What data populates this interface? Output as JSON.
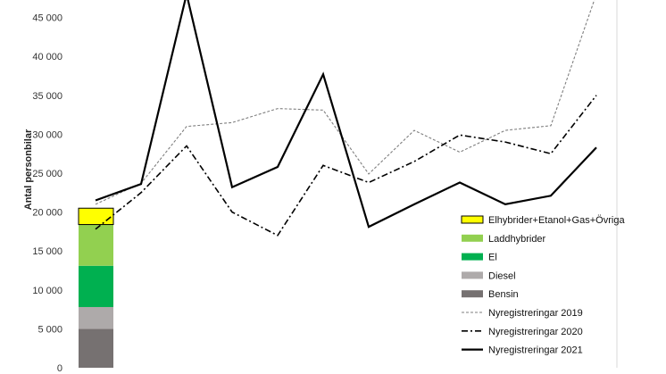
{
  "chart_data": {
    "type": "line",
    "ylabel": "Antal personbilar",
    "ylim": [
      0,
      48000
    ],
    "yticks": [
      0,
      5000,
      10000,
      15000,
      20000,
      25000,
      30000,
      35000,
      40000,
      45000
    ],
    "ytick_labels": [
      "0",
      "5 000",
      "10 000",
      "15 000",
      "20 000",
      "25 000",
      "30 000",
      "35 000",
      "40 000",
      "45 000"
    ],
    "grid": false,
    "legend_position": "right",
    "stacked_bar": {
      "segments": [
        {
          "name": "Bensin",
          "value": 5000,
          "color": "#767171"
        },
        {
          "name": "Diesel",
          "value": 2800,
          "color": "#AEAAAA"
        },
        {
          "name": "El",
          "value": 5300,
          "color": "#00B050"
        },
        {
          "name": "Laddhybrider",
          "value": 5300,
          "color": "#92D050"
        },
        {
          "name": "Elhybrider+Etanol+Gas+Övriga",
          "value": 2100,
          "color": "#FFFF00"
        }
      ]
    },
    "series": [
      {
        "name": "Nyregistreringar 2019",
        "style": "dashed",
        "color": "#7F7F7F",
        "values": [
          21000,
          23700,
          31000,
          31500,
          33300,
          33100,
          24900,
          30500,
          27700,
          30500,
          31100,
          48000
        ]
      },
      {
        "name": "Nyregistreringar 2020",
        "style": "dashdot",
        "color": "#000000",
        "values": [
          17800,
          22500,
          28500,
          20000,
          17000,
          26000,
          23800,
          26500,
          29900,
          29000,
          27500,
          35000
        ]
      },
      {
        "name": "Nyregistreringar 2021",
        "style": "solid",
        "color": "#000000",
        "values": [
          21500,
          23600,
          48000,
          23200,
          25800,
          37700,
          18100,
          21000,
          23800,
          21000,
          22100,
          28300
        ]
      }
    ],
    "legend_order": [
      "Elhybrider+Etanol+Gas+Övriga",
      "Laddhybrider",
      "El",
      "Diesel",
      "Bensin",
      "Nyregistreringar 2019",
      "Nyregistreringar 2020",
      "Nyregistreringar 2021"
    ]
  }
}
